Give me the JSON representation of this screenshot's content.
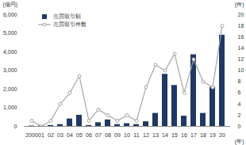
{
  "chart_data": {
    "type": "bar",
    "categories": [
      "2000",
      "01",
      "02",
      "03",
      "04",
      "05",
      "06",
      "07",
      "08",
      "09",
      "10",
      "11",
      "12",
      "13",
      "14",
      "15",
      "16",
      "17",
      "18",
      "19",
      "20"
    ],
    "series": [
      {
        "name": "売買取引額",
        "type": "bar",
        "color": "#1f3864",
        "values": [
          20,
          30,
          50,
          100,
          400,
          600,
          50,
          200,
          350,
          100,
          150,
          100,
          250,
          700,
          2800,
          2200,
          550,
          3850,
          700,
          2100,
          4900
        ]
      },
      {
        "name": "売買取引件数",
        "type": "line",
        "color": "#a6a6a6",
        "marker": "circle",
        "axis": "y2",
        "values": [
          1,
          0,
          1,
          4,
          6,
          9,
          1,
          3,
          2,
          1,
          2,
          1,
          7,
          11,
          10,
          13,
          6,
          12,
          8,
          7,
          18
        ]
      }
    ],
    "ylabel": "(億円)",
    "y2label": "(件)",
    "xlabel": "(年)",
    "ylim": [
      0,
      6000
    ],
    "yticks": [
      0,
      {
        "value": 1000,
        "label": "1,000"
      },
      {
        "value": 2000,
        "label": "2,000"
      },
      {
        "value": 3000,
        "label": "3,000"
      },
      {
        "value": 4000,
        "label": "4,000"
      },
      {
        "value": 5000,
        "label": "5,000"
      },
      {
        "value": 6000,
        "label": "6,000"
      }
    ],
    "y2lim": [
      0,
      20
    ],
    "y2ticks": [
      0,
      2,
      4,
      6,
      8,
      10,
      12,
      14,
      16,
      18,
      20
    ],
    "legend": "top-left",
    "grid": false
  }
}
